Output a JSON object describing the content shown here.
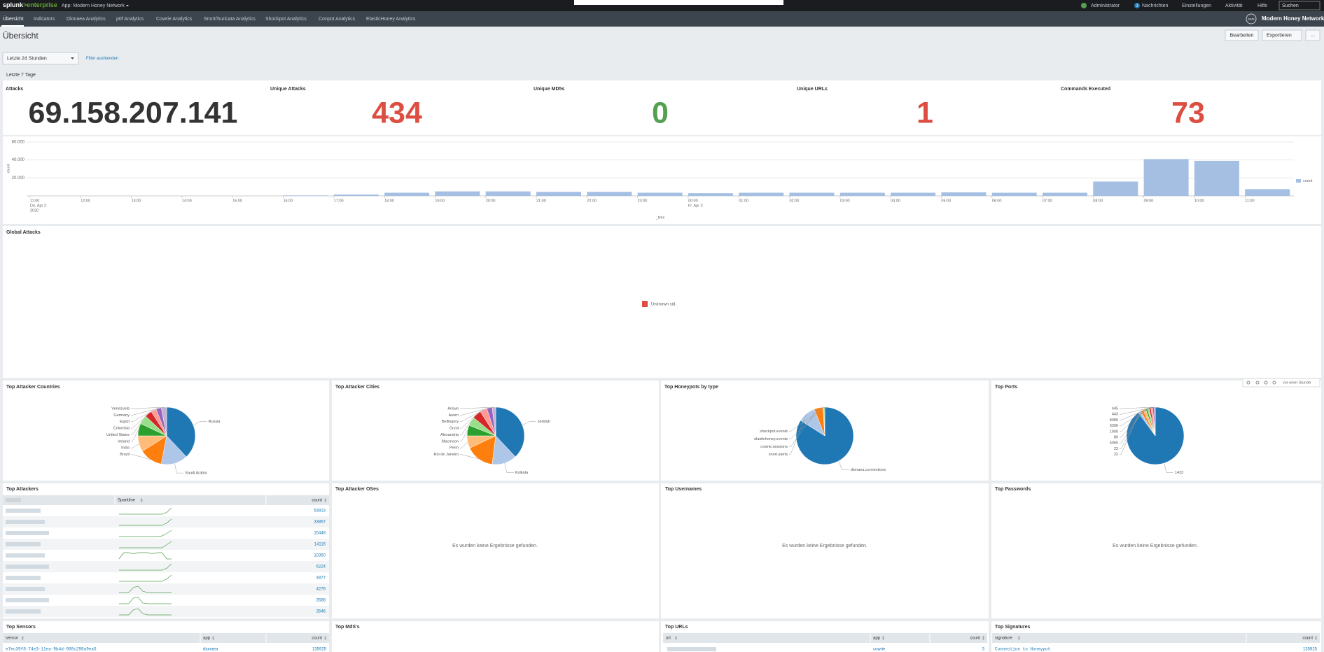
{
  "top_bar": {
    "logo": [
      "splunk",
      ">enterprise"
    ],
    "app": "App: Modern Honey Network",
    "menu": [
      "Administrator",
      "Nachrichten",
      "Einstellungen",
      "Aktivität",
      "Hilfe"
    ],
    "badge": "3",
    "search": "Suchen"
  },
  "nav": {
    "items": [
      "Übersicht",
      "Indicators",
      "Dionaea Analytics",
      "p0f Analytics",
      "Cowrie Analytics",
      "Snort/Suricata Analytics",
      "Shockpot Analytics",
      "Conpot Analytics",
      "ElasticHoney Analytics"
    ],
    "app_icon": "MHN",
    "app_title": "Modern Honey Network"
  },
  "header": {
    "title": "Übersicht",
    "buttons": [
      "Bearbeiten",
      "Exportieren",
      "..."
    ]
  },
  "filters": {
    "time": "Letzte 24 Stunden",
    "hide": "Filter ausblenden"
  },
  "section_label": "Letzte 7 Tage",
  "single_values": [
    {
      "label": "Attacks",
      "value": "69.158.207.141",
      "color": "#333333"
    },
    {
      "label": "Unique Attacks",
      "value": 434,
      "color": "#dc4e41"
    },
    {
      "label": "Unique MD5s",
      "value": 0,
      "color": "#53a051"
    },
    {
      "label": "Unique URLs",
      "value": 1,
      "color": "#dc4e41"
    },
    {
      "label": "Commands Executed",
      "value": 73,
      "color": "#dc4e41"
    }
  ],
  "chart_data": [
    {
      "type": "bar",
      "categories": [
        "11:00",
        "12:00",
        "13:00",
        "14:00",
        "15:00",
        "16:00",
        "17:00",
        "18:00",
        "19:00",
        "20:00",
        "21:00",
        "22:00",
        "23:00",
        "00:00",
        "01:00",
        "02:00",
        "03:00",
        "04:00",
        "05:00",
        "06:00",
        "07:00",
        "08:00",
        "09:00",
        "10:00",
        "11:00"
      ],
      "category_dates": [
        [
          "Do. Apr 2",
          "2020"
        ],
        null,
        null,
        null,
        null,
        null,
        null,
        null,
        null,
        null,
        null,
        null,
        null,
        [
          "Fr. Apr 3"
        ],
        null,
        null,
        null,
        null,
        null,
        null,
        null,
        null,
        null,
        null,
        null
      ],
      "series": [
        {
          "name": "count",
          "color": "#a5bfe3",
          "values": [
            0,
            0,
            0,
            0,
            0,
            500,
            1500,
            3500,
            5000,
            5000,
            4500,
            4500,
            3500,
            3000,
            3500,
            3500,
            3500,
            3500,
            4000,
            3500,
            3500,
            16000,
            41000,
            39000,
            7500
          ]
        }
      ],
      "xlabel": "_time",
      "ylabel": "count",
      "ylim": [
        0,
        60000
      ],
      "yticks": [
        {
          "value": 20000,
          "label": "20.000"
        },
        {
          "value": 40000,
          "label": "40.000"
        },
        {
          "value": 60000,
          "label": "60.000"
        }
      ],
      "grid": true,
      "legend": "right"
    },
    {
      "type": "pie",
      "title": "Top Attacker Countries",
      "categories": [
        "Russia",
        "Saudi Arabia",
        "Brazil",
        "India",
        "Ireland",
        "United States",
        "Colombia",
        "Egypt",
        "Germany",
        "Venezuela"
      ],
      "values": [
        38,
        15,
        13,
        9,
        7,
        5,
        4,
        3,
        3,
        3
      ],
      "colors": [
        "#1f77b4",
        "#aec7e8",
        "#ff7f0e",
        "#ffbb78",
        "#2ca02c",
        "#98df8a",
        "#d62728",
        "#ff9896",
        "#9467bd",
        "#c5b0d5"
      ]
    },
    {
      "type": "pie",
      "title": "Top Attacker Cities",
      "categories": [
        "Jeddah",
        "Kolkata",
        "Rio de Janeiro",
        "Perm",
        "Macmoon",
        "Alexandria",
        "Oryol",
        "Bellingery",
        "Asorn",
        "Ariave"
      ],
      "values": [
        38,
        14,
        16,
        7,
        6,
        5,
        5,
        4,
        3,
        2
      ],
      "colors": [
        "#1f77b4",
        "#aec7e8",
        "#ff7f0e",
        "#ffbb78",
        "#2ca02c",
        "#98df8a",
        "#d62728",
        "#ff9896",
        "#9467bd",
        "#c5b0d5"
      ]
    },
    {
      "type": "pie",
      "title": "Top Honeypots by type",
      "categories": [
        "dionaea.connections",
        "snort.alerts",
        "cowrie.sessions",
        "elastichoney.events",
        "shockpot.events"
      ],
      "values": [
        84,
        10,
        5,
        0.6,
        0.4
      ],
      "colors": [
        "#1f77b4",
        "#aec7e8",
        "#ff7f0e",
        "#ffbb78",
        "#2ca02c"
      ]
    },
    {
      "type": "pie",
      "title": "Top Ports",
      "categories": [
        "1433",
        "22",
        "23",
        "5060",
        "80",
        "1900",
        "3306",
        "8080",
        "443",
        "445"
      ],
      "values": [
        90,
        1.5,
        1.5,
        1.5,
        1,
        1,
        1,
        1,
        1,
        0.5
      ],
      "colors": [
        "#1f77b4",
        "#aec7e8",
        "#ff7f0e",
        "#ffbb78",
        "#2ca02c",
        "#98df8a",
        "#d62728",
        "#ff9896",
        "#9467bd",
        "#c5b0d5"
      ]
    }
  ],
  "global_attacks": {
    "title": "Global Attacks",
    "error": "Unknown sid."
  },
  "panel_toolbar": "vor einer Stunde",
  "top_attackers": {
    "title": "Top Attackers",
    "columns": [
      null,
      "Sparkline",
      "count"
    ],
    "rows": [
      {
        "count": 53913,
        "sparkline": [
          0,
          0,
          0,
          0,
          0,
          0,
          0,
          0,
          0,
          0,
          3,
          10
        ]
      },
      {
        "count": 33867,
        "sparkline": [
          0,
          0,
          0,
          0,
          0,
          0,
          0,
          0,
          0,
          0,
          4,
          10
        ]
      },
      {
        "count": 15448,
        "sparkline": [
          0,
          0,
          0,
          0,
          0,
          0,
          0,
          0,
          0,
          1,
          5,
          10
        ]
      },
      {
        "count": 14116,
        "sparkline": [
          0,
          0,
          0,
          0,
          0,
          0,
          0,
          0,
          0,
          0,
          5,
          10
        ]
      },
      {
        "count": 10350,
        "sparkline": [
          0,
          6,
          6,
          5,
          6,
          6,
          6,
          5,
          6,
          6,
          0,
          0
        ]
      },
      {
        "count": 6224,
        "sparkline": [
          0,
          0,
          0,
          0,
          0,
          0,
          0,
          0,
          0,
          0,
          3,
          10
        ]
      },
      {
        "count": 4877,
        "sparkline": [
          0,
          0,
          0,
          0,
          0,
          0,
          0,
          0,
          0,
          0,
          4,
          10
        ]
      },
      {
        "count": 4276,
        "sparkline": [
          0,
          0,
          0,
          8,
          10,
          2,
          0,
          0,
          0,
          0,
          0,
          0
        ]
      },
      {
        "count": 3588,
        "sparkline": [
          0,
          0,
          0,
          9,
          10,
          1,
          0,
          0,
          0,
          0,
          0,
          0
        ]
      },
      {
        "count": 3546,
        "sparkline": [
          0,
          0,
          0,
          8,
          10,
          2,
          0,
          0,
          0,
          0,
          0,
          0
        ]
      }
    ]
  },
  "empty_panels": [
    {
      "title": "Top Attacker OSes",
      "message": "Es wurden keine Ergebnisse gefunden."
    },
    {
      "title": "Top Usernames",
      "message": "Es wurden keine Ergebnisse gefunden."
    },
    {
      "title": "Top Passwords",
      "message": "Es wurden keine Ergebnisse gefunden."
    }
  ],
  "top_sensors": {
    "title": "Top Sensors",
    "columns": [
      "sensor",
      "app",
      "count"
    ],
    "rows": [
      [
        "e7ec39f8-74e3-11ea-9b4d-000c298a9ea5",
        "dionaea",
        135925
      ]
    ]
  },
  "top_md5s": {
    "title": "Top MdS's"
  },
  "top_urls": {
    "title": "Top URLs",
    "columns": [
      "url",
      "app",
      "count"
    ],
    "rows": [
      [
        null,
        "cowrie",
        3
      ]
    ]
  },
  "top_signatures": {
    "title": "Top Signatures",
    "columns": [
      "signature",
      "count"
    ],
    "rows": [
      [
        "Connection to Honeypot",
        135925
      ]
    ]
  }
}
